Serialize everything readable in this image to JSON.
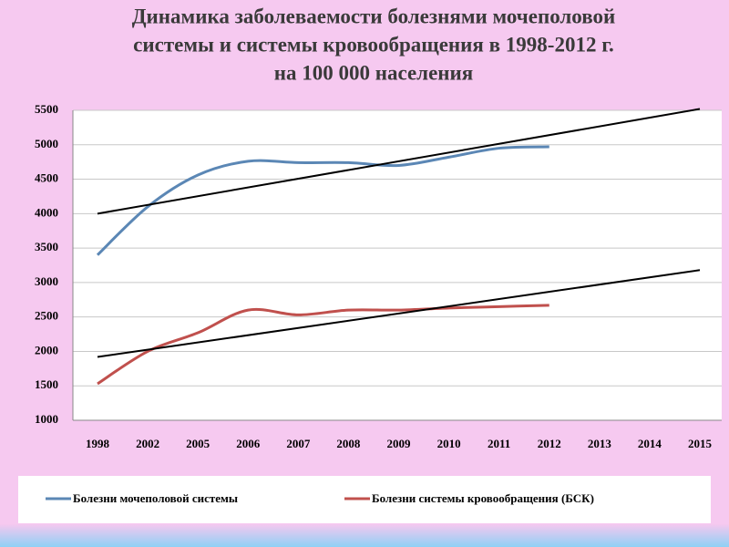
{
  "chart_data": {
    "type": "line",
    "title": [
      "Динамика заболеваемости болезнями мочеполовой",
      "системы и системы кровообращения в 1998-2012 г.",
      "на 100 000 населения"
    ],
    "categories": [
      "1998",
      "2002",
      "2005",
      "2006",
      "2007",
      "2008",
      "2009",
      "2010",
      "2011",
      "2012",
      "2013",
      "2014",
      "2015"
    ],
    "series": [
      {
        "name": "Болезни мочеполовой системы",
        "color": "#5b87b5",
        "values": [
          3400,
          4100,
          4560,
          4760,
          4740,
          4740,
          4700,
          4820,
          4950,
          4970,
          null,
          null,
          null
        ],
        "trend": [
          4000,
          5520
        ]
      },
      {
        "name": "Болезни системы кровообращения (БСК)",
        "color": "#c0504d",
        "values": [
          1530,
          2000,
          2270,
          2600,
          2530,
          2600,
          2600,
          2630,
          2650,
          2670,
          null,
          null,
          null
        ],
        "trend": [
          1920,
          3180
        ]
      }
    ],
    "trend_color": "#000000",
    "ylim": [
      1000,
      5500
    ],
    "yticks": [
      1000,
      1500,
      2000,
      2500,
      3000,
      3500,
      4000,
      4500,
      5000,
      5500
    ],
    "grid": true,
    "smooth": true
  }
}
